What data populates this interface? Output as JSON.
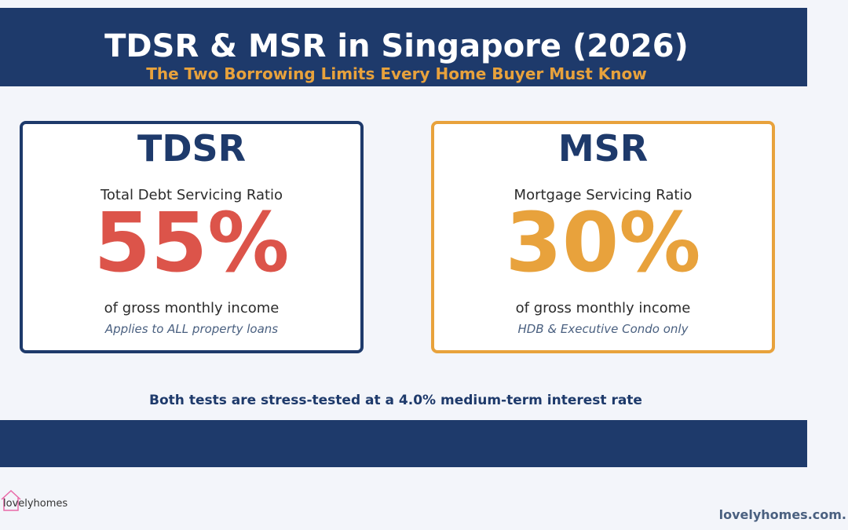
{
  "header": {
    "title": "TDSR & MSR in Singapore (2026)",
    "subtitle": "The Two Borrowing Limits Every Home Buyer Must Know"
  },
  "cards": [
    {
      "title": "TDSR",
      "name": "Total Debt Servicing Ratio",
      "value": "55%",
      "basis": "of gross monthly income",
      "note": "Applies to ALL property loans"
    },
    {
      "title": "MSR",
      "name": "Mortgage Servicing Ratio",
      "value": "30%",
      "basis": "of gross monthly income",
      "note": "HDB & Executive Condo only"
    }
  ],
  "footnote": "Both tests are stress-tested at a 4.0% medium-term interest rate",
  "logo": "lovelyhomes",
  "website": "lovelyhomes.com."
}
